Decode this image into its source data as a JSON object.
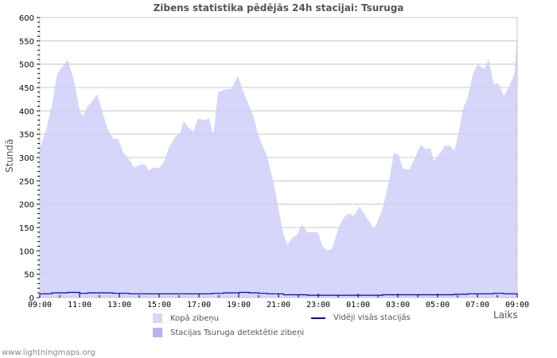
{
  "chart_data": {
    "type": "area",
    "title": "Zibens statistika pēdējās 24h stacijai: Tsuruga",
    "xlabel": "Laiks",
    "ylabel": "Stundā",
    "ylim": [
      0,
      600
    ],
    "yticks": [
      0,
      50,
      100,
      150,
      200,
      250,
      300,
      350,
      400,
      450,
      500,
      550,
      600
    ],
    "xticks": [
      "09:00",
      "11:00",
      "13:00",
      "15:00",
      "17:00",
      "19:00",
      "21:00",
      "23:00",
      "01:00",
      "03:00",
      "05:00",
      "07:00",
      "09:00"
    ],
    "grid": true,
    "legend_position": "bottom",
    "series": [
      {
        "name": "Kopā zibeņu",
        "type": "area",
        "color": "#d6d6fa",
        "x_hours": [
          0,
          0.32,
          0.6,
          0.88,
          1.4,
          1.69,
          2.01,
          2.17,
          2.41,
          2.89,
          3.13,
          3.41,
          3.69,
          3.93,
          4.21,
          4.5,
          4.74,
          5.06,
          5.3,
          5.46,
          5.7,
          6.02,
          6.26,
          6.5,
          6.82,
          7.06,
          7.23,
          7.47,
          7.71,
          7.95,
          8.35,
          8.51,
          8.67,
          8.75,
          8.96,
          9.24,
          9.64,
          9.96,
          10.24,
          10.53,
          10.73,
          11.01,
          11.41,
          11.73,
          12.05,
          12.25,
          12.45,
          12.69,
          12.93,
          13.17,
          13.45,
          13.98,
          14.22,
          14.46,
          14.7,
          15.02,
          15.26,
          15.51,
          15.79,
          16.07,
          16.35,
          16.75,
          16.83,
          17.23,
          17.56,
          17.8,
          18.04,
          18.28,
          18.6,
          18.92,
          19.16,
          19.36,
          19.64,
          19.8,
          20.12,
          20.36,
          20.64,
          20.84,
          21.04,
          21.28,
          21.52,
          21.77,
          22.01,
          22.33,
          22.57,
          22.81,
          23.05,
          23.33,
          23.62,
          23.86,
          24.0
        ],
        "values": [
          318,
          360,
          410,
          480,
          510,
          470,
          400,
          388,
          410,
          435,
          400,
          360,
          340,
          340,
          310,
          295,
          278,
          285,
          285,
          272,
          278,
          278,
          293,
          322,
          345,
          352,
          378,
          365,
          355,
          383,
          380,
          385,
          355,
          355,
          440,
          445,
          447,
          475,
          440,
          410,
          390,
          345,
          305,
          250,
          180,
          135,
          113,
          128,
          135,
          157,
          140,
          140,
          110,
          100,
          105,
          150,
          170,
          180,
          175,
          195,
          177,
          150,
          147,
          190,
          250,
          310,
          305,
          275,
          275,
          305,
          328,
          318,
          320,
          292,
          310,
          325,
          325,
          315,
          350,
          405,
          430,
          480,
          500,
          490,
          510,
          458,
          458,
          432,
          455,
          480,
          565
        ]
      },
      {
        "name": "Stacijas Tsuruga detektētie zibeņi",
        "type": "area",
        "color": "#b3b3f5",
        "values": []
      },
      {
        "name": "Vidēji visās stacijās",
        "type": "line",
        "color": "#0000cc",
        "x_hours": [
          0,
          0.6,
          1.4,
          2.01,
          2.41,
          3.13,
          3.69,
          4.5,
          5.3,
          6.5,
          7.47,
          8.67,
          9.24,
          10.04,
          10.53,
          11.01,
          11.41,
          12.25,
          13.45,
          14.22,
          15.02,
          16.07,
          17.23,
          18.04,
          19.64,
          20.84,
          21.52,
          22.81,
          23.33,
          24.0
        ],
        "values": [
          8,
          10,
          11,
          9,
          10,
          10,
          9,
          8,
          8,
          8,
          8,
          9,
          10,
          11,
          10,
          9,
          8,
          6,
          5,
          5,
          5,
          5,
          6,
          6,
          6,
          7,
          8,
          9,
          8,
          10
        ]
      }
    ]
  },
  "legend": {
    "total_label": "Kopā zibeņu",
    "station_label": "Stacijas Tsuruga detektētie zibeņi",
    "average_label": "Vidēji visās stacijās"
  },
  "axis": {
    "x_label": "Laiks",
    "y_label": "Stundā"
  },
  "footer": "www.lightningmaps.org"
}
